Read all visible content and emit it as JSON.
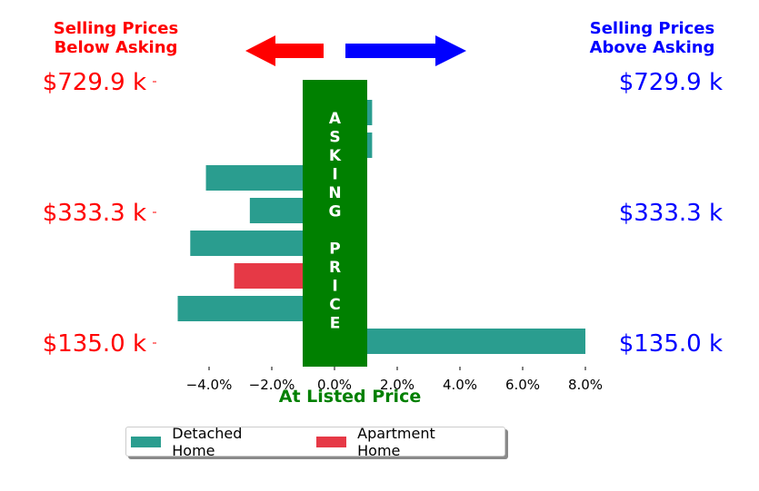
{
  "header": {
    "below_asking": [
      "Selling Prices",
      "Below Asking"
    ],
    "above_asking": [
      "Selling Prices",
      "Above Asking"
    ]
  },
  "colors": {
    "detached": "#2a9d8f",
    "apartment": "#e63946",
    "asking_band": "#008000",
    "below": "#ff0000",
    "above": "#0000ff"
  },
  "chart_data": {
    "type": "bar",
    "orientation": "horizontal",
    "xlabel": "At Listed Price",
    "xlim": [
      -5.5,
      8.0
    ],
    "xticks": [
      "−4.0%",
      "−2.0%",
      "0.0%",
      "2.0%",
      "4.0%",
      "6.0%",
      "8.0%"
    ],
    "ytick_labels": [
      "$729.9 k",
      "$333.3 k",
      "$135.0 k"
    ],
    "band_text": [
      "A",
      "S",
      "K",
      "I",
      "N",
      "G",
      "",
      "P",
      "R",
      "I",
      "C",
      "E"
    ],
    "series": [
      {
        "name": "Detached Home",
        "type": "detached",
        "values": [
          1.2,
          1.2,
          -4.1,
          -2.7,
          -4.6,
          null,
          -5.0,
          8.0
        ]
      },
      {
        "name": "Apartment Home",
        "type": "apartment",
        "values": [
          null,
          null,
          null,
          null,
          null,
          -3.2,
          null,
          null
        ]
      }
    ],
    "legend": {
      "position": "bottom",
      "entries": [
        "Detached Home",
        "Apartment Home"
      ]
    }
  }
}
